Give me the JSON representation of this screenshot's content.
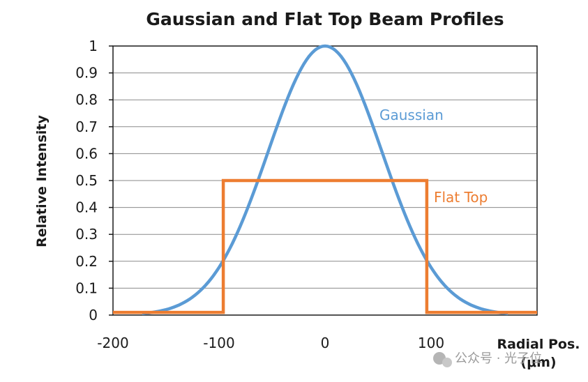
{
  "chart_data": {
    "type": "line",
    "title": "Gaussian and Flat Top Beam Profiles",
    "xlabel_line1": "Radial Pos.",
    "xlabel_line2": "(μm)",
    "ylabel": "Relative Intensity",
    "xlim": [
      -200,
      200
    ],
    "ylim": [
      0,
      1
    ],
    "x_ticks": [
      -200,
      -100,
      0,
      100
    ],
    "x_tick_labels": [
      "-200",
      "-100",
      "0",
      "100"
    ],
    "y_ticks": [
      0,
      0.1,
      0.2,
      0.3,
      0.4,
      0.5,
      0.6,
      0.7,
      0.8,
      0.9,
      1
    ],
    "y_tick_labels": [
      "0",
      "0.1",
      "0.2",
      "0.3",
      "0.4",
      "0.5",
      "0.6",
      "0.7",
      "0.8",
      "0.9",
      "1"
    ],
    "grid": true,
    "series": [
      {
        "name": "Gaussian",
        "color": "#5b9bd5",
        "x": [
          -200,
          -180,
          -160,
          -140,
          -120,
          -100,
          -80,
          -60,
          -40,
          -20,
          0,
          20,
          40,
          60,
          80,
          100,
          120,
          140,
          160,
          180,
          200
        ],
        "y": [
          0,
          0,
          0.01,
          0.04,
          0.11,
          0.22,
          0.38,
          0.58,
          0.78,
          0.94,
          1.0,
          0.94,
          0.78,
          0.58,
          0.38,
          0.22,
          0.11,
          0.04,
          0.01,
          0,
          0
        ]
      },
      {
        "name": "Flat Top",
        "color": "#ed7d31",
        "x": [
          -200,
          -96,
          -96,
          96,
          96,
          200
        ],
        "y": [
          0.01,
          0.01,
          0.5,
          0.5,
          0.01,
          0.01
        ]
      }
    ]
  },
  "watermark": "公众号 · 光子位"
}
